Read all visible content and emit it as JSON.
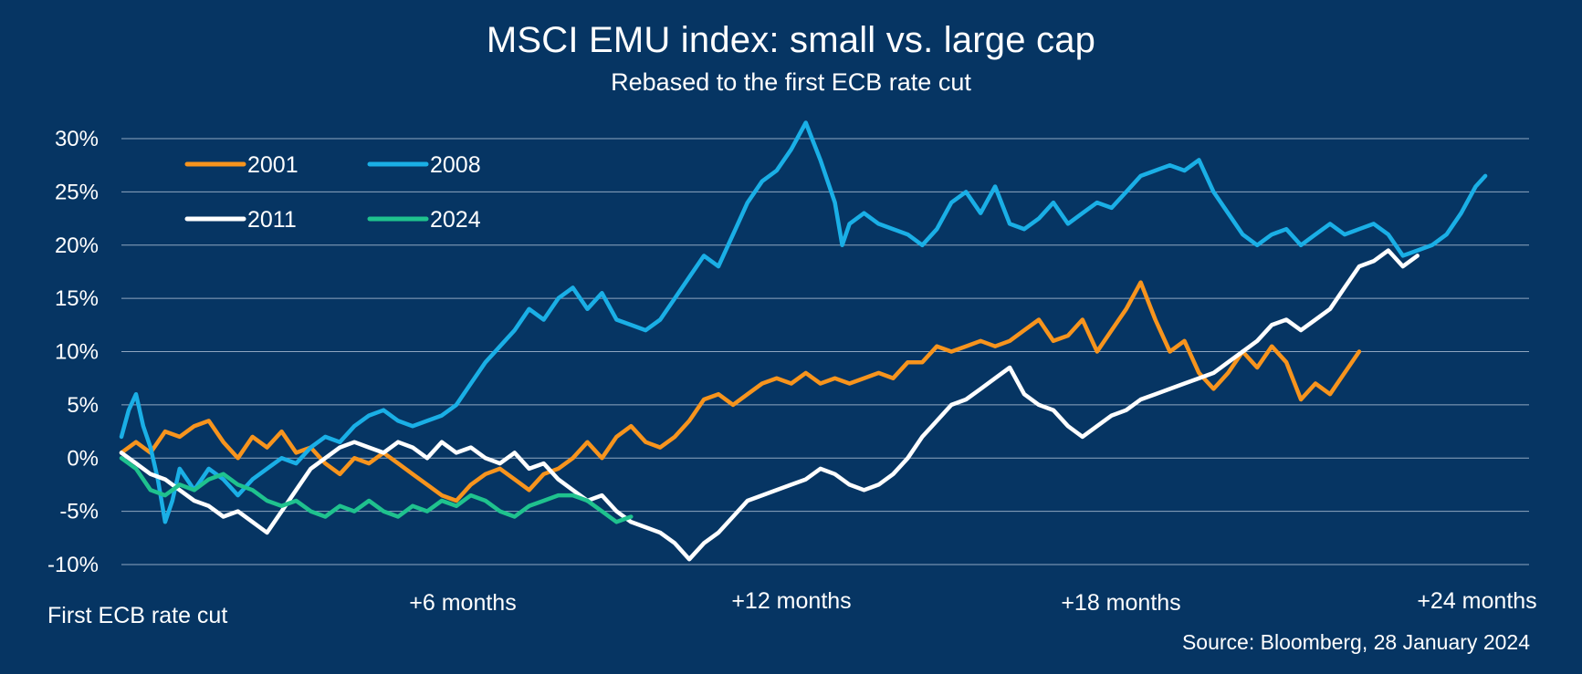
{
  "chart_data": {
    "type": "line",
    "title": "MSCI EMU index: small vs. large cap",
    "subtitle": "Rebased to the first ECB rate cut",
    "source": "Source: Bloomberg, 28 January 2024",
    "xlabel": "",
    "ylabel": "",
    "x_unit": "months since first ECB rate cut",
    "xlim": [
      0,
      25.5
    ],
    "ylim": [
      -10,
      30
    ],
    "y_ticks": [
      30,
      25,
      20,
      15,
      10,
      5,
      0,
      -5,
      -10
    ],
    "y_tick_labels": [
      "30%",
      "25%",
      "20%",
      "15%",
      "10%",
      "5%",
      "0%",
      "-5%",
      "-10%"
    ],
    "x_ticks": [
      0,
      6,
      12,
      18,
      24
    ],
    "x_tick_labels": [
      "First ECB rate cut",
      "+6 months",
      "+12 months",
      "+18 months",
      "+24 months"
    ],
    "grid": true,
    "legend_position": "top-left",
    "series": [
      {
        "name": "2001",
        "color": "#F7941D",
        "points": [
          [
            0,
            0.5
          ],
          [
            0.3,
            1.5
          ],
          [
            0.6,
            0.5
          ],
          [
            0.9,
            2.5
          ],
          [
            1.2,
            2
          ],
          [
            1.5,
            3
          ],
          [
            1.8,
            3.5
          ],
          [
            2.1,
            1.5
          ],
          [
            2.4,
            0
          ],
          [
            2.7,
            2
          ],
          [
            3,
            1
          ],
          [
            3.3,
            2.5
          ],
          [
            3.6,
            0.5
          ],
          [
            3.9,
            1
          ],
          [
            4.2,
            -0.5
          ],
          [
            4.5,
            -1.5
          ],
          [
            4.8,
            0
          ],
          [
            5.1,
            -0.5
          ],
          [
            5.4,
            0.5
          ],
          [
            5.7,
            -0.5
          ],
          [
            6,
            -1.5
          ],
          [
            6.3,
            -2.5
          ],
          [
            6.6,
            -3.5
          ],
          [
            6.9,
            -4
          ],
          [
            7.2,
            -2.5
          ],
          [
            7.5,
            -1.5
          ],
          [
            7.8,
            -1
          ],
          [
            8.1,
            -2
          ],
          [
            8.4,
            -3
          ],
          [
            8.7,
            -1.5
          ],
          [
            9,
            -1
          ],
          [
            9.3,
            0
          ],
          [
            9.6,
            1.5
          ],
          [
            9.9,
            0
          ],
          [
            10.2,
            2
          ],
          [
            10.5,
            3
          ],
          [
            10.8,
            1.5
          ],
          [
            11.1,
            1
          ],
          [
            11.4,
            2
          ],
          [
            11.7,
            3.5
          ],
          [
            12,
            5.5
          ],
          [
            12.3,
            6
          ],
          [
            12.6,
            5
          ],
          [
            12.9,
            6
          ],
          [
            13.2,
            7
          ],
          [
            13.5,
            7.5
          ],
          [
            13.8,
            7
          ],
          [
            14.1,
            8
          ],
          [
            14.4,
            7
          ],
          [
            14.7,
            7.5
          ],
          [
            15,
            7
          ],
          [
            15.3,
            7.5
          ],
          [
            15.6,
            8
          ],
          [
            15.9,
            7.5
          ],
          [
            16.2,
            9
          ],
          [
            16.5,
            9
          ],
          [
            16.8,
            10.5
          ],
          [
            17.1,
            10
          ],
          [
            17.4,
            10.5
          ],
          [
            17.7,
            11
          ],
          [
            18,
            10.5
          ],
          [
            18.3,
            11
          ],
          [
            18.6,
            12
          ],
          [
            18.9,
            13
          ],
          [
            19.2,
            11
          ],
          [
            19.5,
            11.5
          ],
          [
            19.8,
            13
          ],
          [
            20.1,
            10
          ],
          [
            20.4,
            12
          ],
          [
            20.7,
            14
          ],
          [
            21,
            16.5
          ],
          [
            21.3,
            13
          ],
          [
            21.6,
            10
          ],
          [
            21.9,
            11
          ],
          [
            22.2,
            8
          ],
          [
            22.5,
            6.5
          ],
          [
            22.8,
            8
          ],
          [
            23.1,
            10
          ],
          [
            23.4,
            8.5
          ],
          [
            23.7,
            10.5
          ],
          [
            24,
            9
          ],
          [
            24.3,
            5.5
          ],
          [
            24.6,
            7
          ],
          [
            24.9,
            6
          ],
          [
            25.2,
            8
          ],
          [
            25.5,
            10
          ]
        ]
      },
      {
        "name": "2008",
        "color": "#1AAFE6",
        "points": [
          [
            0,
            2
          ],
          [
            0.15,
            4.5
          ],
          [
            0.3,
            6
          ],
          [
            0.45,
            3
          ],
          [
            0.6,
            1
          ],
          [
            0.75,
            -2
          ],
          [
            0.9,
            -6
          ],
          [
            1.05,
            -4
          ],
          [
            1.2,
            -1
          ],
          [
            1.5,
            -3
          ],
          [
            1.8,
            -1
          ],
          [
            2.1,
            -2
          ],
          [
            2.4,
            -3.5
          ],
          [
            2.7,
            -2
          ],
          [
            3,
            -1
          ],
          [
            3.3,
            0
          ],
          [
            3.6,
            -0.5
          ],
          [
            3.9,
            1
          ],
          [
            4.2,
            2
          ],
          [
            4.5,
            1.5
          ],
          [
            4.8,
            3
          ],
          [
            5.1,
            4
          ],
          [
            5.4,
            4.5
          ],
          [
            5.7,
            3.5
          ],
          [
            6,
            3
          ],
          [
            6.3,
            3.5
          ],
          [
            6.6,
            4
          ],
          [
            6.9,
            5
          ],
          [
            7.2,
            7
          ],
          [
            7.5,
            9
          ],
          [
            7.8,
            10.5
          ],
          [
            8.1,
            12
          ],
          [
            8.4,
            14
          ],
          [
            8.7,
            13
          ],
          [
            9,
            15
          ],
          [
            9.3,
            16
          ],
          [
            9.6,
            14
          ],
          [
            9.9,
            15.5
          ],
          [
            10.2,
            13
          ],
          [
            10.5,
            12.5
          ],
          [
            10.8,
            12
          ],
          [
            11.1,
            13
          ],
          [
            11.4,
            15
          ],
          [
            11.7,
            17
          ],
          [
            12,
            19
          ],
          [
            12.3,
            18
          ],
          [
            12.6,
            21
          ],
          [
            12.9,
            24
          ],
          [
            13.2,
            26
          ],
          [
            13.5,
            27
          ],
          [
            13.8,
            29
          ],
          [
            14.1,
            31.5
          ],
          [
            14.4,
            28
          ],
          [
            14.7,
            24
          ],
          [
            14.85,
            20
          ],
          [
            15,
            22
          ],
          [
            15.3,
            23
          ],
          [
            15.6,
            22
          ],
          [
            15.9,
            21.5
          ],
          [
            16.2,
            21
          ],
          [
            16.5,
            20
          ],
          [
            16.8,
            21.5
          ],
          [
            17.1,
            24
          ],
          [
            17.4,
            25
          ],
          [
            17.7,
            23
          ],
          [
            18,
            25.5
          ],
          [
            18.3,
            22
          ],
          [
            18.6,
            21.5
          ],
          [
            18.9,
            22.5
          ],
          [
            19.2,
            24
          ],
          [
            19.5,
            22
          ],
          [
            19.8,
            23
          ],
          [
            20.1,
            24
          ],
          [
            20.4,
            23.5
          ],
          [
            20.7,
            25
          ],
          [
            21,
            26.5
          ],
          [
            21.3,
            27
          ],
          [
            21.6,
            27.5
          ],
          [
            21.9,
            27
          ],
          [
            22.2,
            28
          ],
          [
            22.5,
            25
          ],
          [
            22.8,
            23
          ],
          [
            23.1,
            21
          ],
          [
            23.4,
            20
          ],
          [
            23.7,
            21
          ],
          [
            24,
            21.5
          ],
          [
            24.3,
            20
          ],
          [
            24.6,
            21
          ],
          [
            24.9,
            22
          ],
          [
            25.2,
            21
          ],
          [
            25.5,
            21.5
          ],
          [
            25.8,
            22
          ],
          [
            26.1,
            21
          ],
          [
            26.4,
            19
          ],
          [
            26.7,
            19.5
          ],
          [
            27,
            20
          ],
          [
            27.3,
            21
          ],
          [
            27.6,
            23
          ],
          [
            27.9,
            25.5
          ],
          [
            28.1,
            26.5
          ]
        ]
      },
      {
        "name": "2011",
        "color": "#FFFFFF",
        "points": [
          [
            0,
            0.5
          ],
          [
            0.3,
            -0.5
          ],
          [
            0.6,
            -1.5
          ],
          [
            0.9,
            -2
          ],
          [
            1.2,
            -3
          ],
          [
            1.5,
            -4
          ],
          [
            1.8,
            -4.5
          ],
          [
            2.1,
            -5.5
          ],
          [
            2.4,
            -5
          ],
          [
            2.7,
            -6
          ],
          [
            3,
            -7
          ],
          [
            3.3,
            -5
          ],
          [
            3.6,
            -3
          ],
          [
            3.9,
            -1
          ],
          [
            4.2,
            0
          ],
          [
            4.5,
            1
          ],
          [
            4.8,
            1.5
          ],
          [
            5.1,
            1
          ],
          [
            5.4,
            0.5
          ],
          [
            5.7,
            1.5
          ],
          [
            6,
            1
          ],
          [
            6.3,
            0
          ],
          [
            6.6,
            1.5
          ],
          [
            6.9,
            0.5
          ],
          [
            7.2,
            1
          ],
          [
            7.5,
            0
          ],
          [
            7.8,
            -0.5
          ],
          [
            8.1,
            0.5
          ],
          [
            8.4,
            -1
          ],
          [
            8.7,
            -0.5
          ],
          [
            9,
            -2
          ],
          [
            9.3,
            -3
          ],
          [
            9.6,
            -4
          ],
          [
            9.9,
            -3.5
          ],
          [
            10.2,
            -5
          ],
          [
            10.5,
            -6
          ],
          [
            10.8,
            -6.5
          ],
          [
            11.1,
            -7
          ],
          [
            11.4,
            -8
          ],
          [
            11.7,
            -9.5
          ],
          [
            12,
            -8
          ],
          [
            12.3,
            -7
          ],
          [
            12.6,
            -5.5
          ],
          [
            12.9,
            -4
          ],
          [
            13.2,
            -3.5
          ],
          [
            13.5,
            -3
          ],
          [
            13.8,
            -2.5
          ],
          [
            14.1,
            -2
          ],
          [
            14.4,
            -1
          ],
          [
            14.7,
            -1.5
          ],
          [
            15,
            -2.5
          ],
          [
            15.3,
            -3
          ],
          [
            15.6,
            -2.5
          ],
          [
            15.9,
            -1.5
          ],
          [
            16.2,
            0
          ],
          [
            16.5,
            2
          ],
          [
            16.8,
            3.5
          ],
          [
            17.1,
            5
          ],
          [
            17.4,
            5.5
          ],
          [
            17.7,
            6.5
          ],
          [
            18,
            7.5
          ],
          [
            18.3,
            8.5
          ],
          [
            18.6,
            6
          ],
          [
            18.9,
            5
          ],
          [
            19.2,
            4.5
          ],
          [
            19.5,
            3
          ],
          [
            19.8,
            2
          ],
          [
            20.1,
            3
          ],
          [
            20.4,
            4
          ],
          [
            20.7,
            4.5
          ],
          [
            21,
            5.5
          ],
          [
            21.3,
            6
          ],
          [
            21.6,
            6.5
          ],
          [
            21.9,
            7
          ],
          [
            22.2,
            7.5
          ],
          [
            22.5,
            8
          ],
          [
            22.8,
            9
          ],
          [
            23.1,
            10
          ],
          [
            23.4,
            11
          ],
          [
            23.7,
            12.5
          ],
          [
            24,
            13
          ],
          [
            24.3,
            12
          ],
          [
            24.6,
            13
          ],
          [
            24.9,
            14
          ],
          [
            25.2,
            16
          ],
          [
            25.5,
            18
          ],
          [
            25.8,
            18.5
          ],
          [
            26.1,
            19.5
          ],
          [
            26.4,
            18
          ],
          [
            26.7,
            19
          ]
        ]
      },
      {
        "name": "2024",
        "color": "#1FC28E",
        "points": [
          [
            0,
            0
          ],
          [
            0.3,
            -1
          ],
          [
            0.6,
            -3
          ],
          [
            0.9,
            -3.5
          ],
          [
            1.2,
            -2.5
          ],
          [
            1.5,
            -3
          ],
          [
            1.8,
            -2
          ],
          [
            2.1,
            -1.5
          ],
          [
            2.4,
            -2.5
          ],
          [
            2.7,
            -3
          ],
          [
            3,
            -4
          ],
          [
            3.3,
            -4.5
          ],
          [
            3.6,
            -4
          ],
          [
            3.9,
            -5
          ],
          [
            4.2,
            -5.5
          ],
          [
            4.5,
            -4.5
          ],
          [
            4.8,
            -5
          ],
          [
            5.1,
            -4
          ],
          [
            5.4,
            -5
          ],
          [
            5.7,
            -5.5
          ],
          [
            6,
            -4.5
          ],
          [
            6.3,
            -5
          ],
          [
            6.6,
            -4
          ],
          [
            6.9,
            -4.5
          ],
          [
            7.2,
            -3.5
          ],
          [
            7.5,
            -4
          ],
          [
            7.8,
            -5
          ],
          [
            8.1,
            -5.5
          ],
          [
            8.4,
            -4.5
          ],
          [
            8.7,
            -4
          ],
          [
            9,
            -3.5
          ],
          [
            9.3,
            -3.5
          ],
          [
            9.6,
            -4
          ],
          [
            9.9,
            -5
          ],
          [
            10.2,
            -6
          ],
          [
            10.5,
            -5.5
          ]
        ]
      }
    ]
  }
}
